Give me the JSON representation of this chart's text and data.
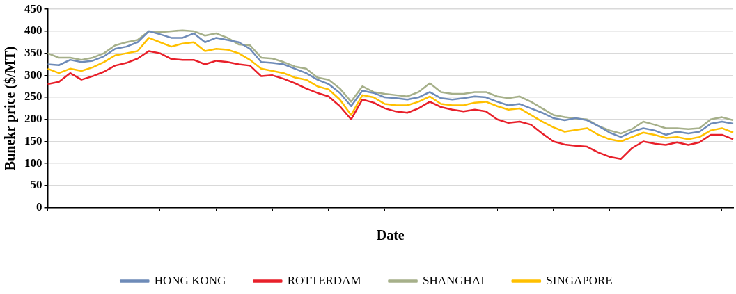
{
  "chart_data": {
    "type": "line",
    "xlabel": "Date",
    "ylabel": "Bunekr price ($/MT)",
    "categories": [
      null,
      null,
      null,
      null,
      null,
      null,
      null,
      null,
      null,
      null,
      null,
      null,
      null,
      null,
      null,
      null,
      null,
      null,
      null,
      null,
      null,
      null,
      null,
      null,
      null,
      null,
      null,
      null,
      null,
      null,
      null,
      null,
      null,
      null,
      null,
      null,
      null,
      null,
      null,
      null,
      null,
      null,
      null,
      null,
      null,
      null,
      null,
      null,
      null,
      null,
      null,
      null,
      null,
      null,
      null,
      null,
      null,
      null,
      null,
      null,
      null,
      null
    ],
    "series": [
      {
        "name": "HONG KONG",
        "color": "#6e8bb8",
        "values": [
          325,
          323,
          335,
          330,
          333,
          343,
          360,
          365,
          375,
          400,
          393,
          385,
          385,
          395,
          375,
          385,
          380,
          375,
          360,
          330,
          328,
          325,
          315,
          305,
          290,
          280,
          260,
          230,
          265,
          260,
          250,
          248,
          245,
          250,
          262,
          248,
          245,
          248,
          252,
          250,
          240,
          232,
          235,
          225,
          215,
          203,
          198,
          203,
          198,
          185,
          170,
          160,
          172,
          180,
          175,
          165,
          172,
          168,
          172,
          190,
          195,
          190
        ]
      },
      {
        "name": "ROTTERDAM",
        "color": "#e8202a",
        "values": [
          280,
          285,
          305,
          290,
          298,
          308,
          322,
          328,
          338,
          355,
          350,
          337,
          335,
          335,
          325,
          333,
          330,
          325,
          322,
          298,
          300,
          292,
          282,
          270,
          260,
          252,
          230,
          200,
          245,
          238,
          225,
          218,
          215,
          225,
          240,
          228,
          222,
          218,
          222,
          218,
          200,
          192,
          195,
          188,
          168,
          150,
          143,
          140,
          138,
          125,
          115,
          110,
          135,
          150,
          145,
          142,
          148,
          142,
          148,
          165,
          165,
          155
        ]
      },
      {
        "name": "SHANGHAI",
        "color": "#a6b08a",
        "values": [
          350,
          340,
          340,
          335,
          340,
          350,
          368,
          375,
          380,
          400,
          398,
          400,
          402,
          400,
          390,
          395,
          385,
          370,
          368,
          340,
          338,
          330,
          320,
          315,
          295,
          290,
          270,
          240,
          275,
          262,
          258,
          255,
          252,
          262,
          282,
          262,
          258,
          258,
          262,
          262,
          252,
          248,
          252,
          240,
          225,
          210,
          205,
          202,
          200,
          185,
          175,
          168,
          178,
          195,
          188,
          180,
          180,
          178,
          180,
          200,
          205,
          198
        ]
      },
      {
        "name": "SINGAPORE",
        "color": "#ffc000",
        "values": [
          315,
          305,
          315,
          310,
          318,
          330,
          345,
          350,
          355,
          385,
          375,
          365,
          372,
          375,
          355,
          360,
          358,
          350,
          335,
          315,
          310,
          305,
          295,
          290,
          275,
          268,
          245,
          210,
          255,
          250,
          235,
          232,
          232,
          240,
          252,
          235,
          232,
          232,
          238,
          240,
          230,
          222,
          225,
          210,
          195,
          182,
          172,
          176,
          180,
          165,
          155,
          150,
          160,
          170,
          165,
          158,
          160,
          155,
          160,
          175,
          180,
          170
        ]
      }
    ],
    "ylim": [
      0,
      450
    ],
    "yticks": [
      0,
      50,
      100,
      150,
      200,
      250,
      300,
      350,
      400,
      450
    ],
    "grid": "y",
    "legend": "bottom",
    "marker": "none",
    "line_style": "solid"
  }
}
